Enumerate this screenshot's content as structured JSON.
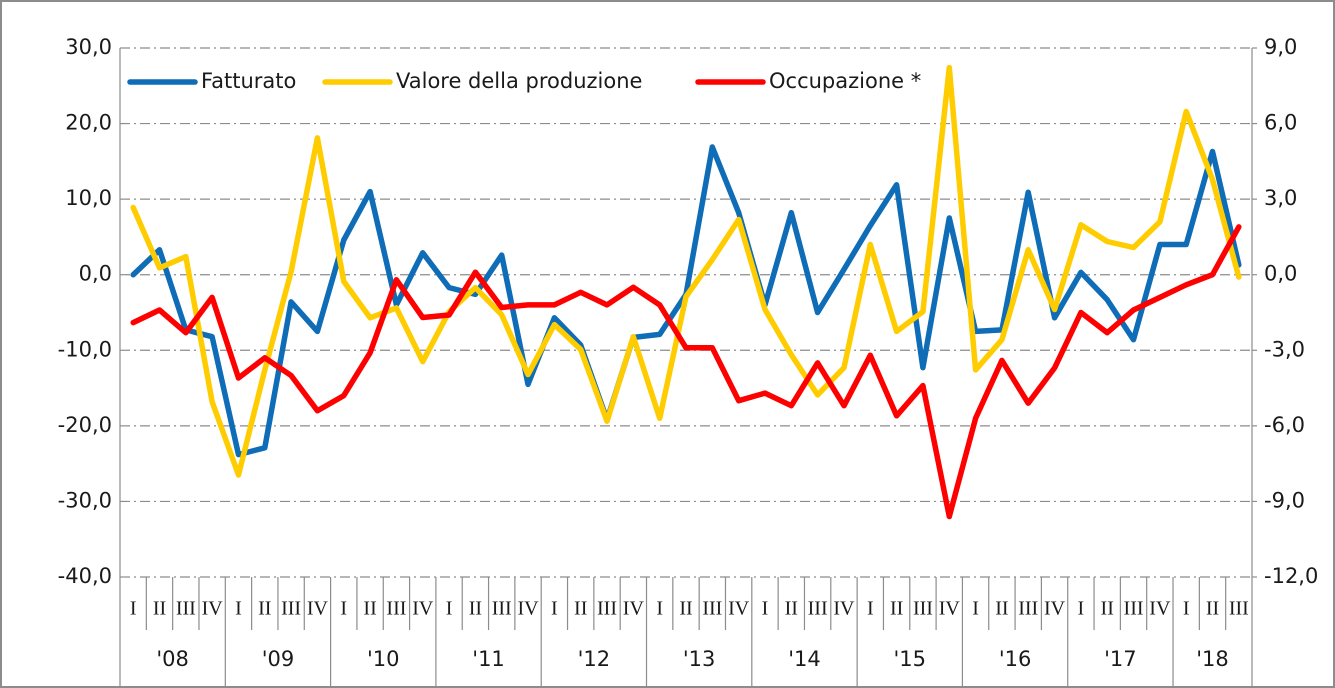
{
  "chart_data": {
    "type": "line",
    "categories": [
      "I",
      "II",
      "III",
      "IV",
      "I",
      "II",
      "III",
      "IV",
      "I",
      "II",
      "III",
      "IV",
      "I",
      "II",
      "III",
      "IV",
      "I",
      "II",
      "III",
      "IV",
      "I",
      "II",
      "III",
      "IV",
      "I",
      "II",
      "III",
      "IV",
      "I",
      "II",
      "III",
      "IV",
      "I",
      "II",
      "III",
      "IV",
      "I",
      "II",
      "III",
      "IV",
      "I",
      "II",
      "III"
    ],
    "x_groups": [
      "'08",
      "'09",
      "'10",
      "'11",
      "'12",
      "'13",
      "'14",
      "'15",
      "'16",
      "'17",
      "'18"
    ],
    "series": [
      {
        "name": "Fatturato",
        "color": "#0f6cb6",
        "values": [
          0.0,
          3.3,
          -7.3,
          -8.2,
          -23.8,
          -22.9,
          -3.6,
          -7.5,
          4.6,
          11.0,
          -4.0,
          2.9,
          -1.7,
          -2.6,
          2.6,
          -14.5,
          -5.7,
          -9.3,
          -19.2,
          -8.3,
          -7.9,
          -2.6,
          16.9,
          8.2,
          -4.0,
          8.2,
          -5.0,
          0.7,
          6.5,
          11.9,
          -12.3,
          7.5,
          -7.5,
          -7.3,
          10.9,
          -5.7,
          0.3,
          -3.3,
          -8.6,
          4.0,
          4.0,
          16.3,
          1.3
        ]
      },
      {
        "name": "Valore della produzione",
        "color": "#ffcc00",
        "values": [
          8.9,
          0.9,
          2.4,
          -16.8,
          -26.5,
          -12.6,
          0.4,
          18.1,
          -0.9,
          -5.7,
          -4.4,
          -11.5,
          -4.9,
          -1.7,
          -5.3,
          -13.2,
          -6.6,
          -9.9,
          -19.4,
          -8.2,
          -19.0,
          -2.9,
          2.0,
          7.3,
          -4.6,
          -10.6,
          -15.9,
          -12.3,
          4.0,
          -7.5,
          -4.9,
          27.4,
          -12.6,
          -8.6,
          3.3,
          -4.6,
          6.6,
          4.4,
          3.6,
          7.0,
          21.6,
          12.6,
          -0.3
        ]
      },
      {
        "name": "Occupazione *",
        "color": "#ff0000",
        "axis": "y2",
        "values": [
          -1.9,
          -1.4,
          -2.3,
          -0.9,
          -4.1,
          -3.3,
          -4.0,
          -5.4,
          -4.8,
          -3.1,
          -0.2,
          -1.7,
          -1.6,
          0.1,
          -1.3,
          -1.2,
          -1.2,
          -0.7,
          -1.2,
          -0.5,
          -1.2,
          -2.9,
          -2.9,
          -5.0,
          -4.7,
          -5.2,
          -3.5,
          -5.2,
          -3.2,
          -5.6,
          -4.4,
          -9.6,
          -5.7,
          -3.4,
          -5.1,
          -3.7,
          -1.5,
          -2.3,
          -1.4,
          -0.9,
          -0.4,
          0.0,
          1.9
        ]
      }
    ],
    "ylim": [
      -40,
      30
    ],
    "yticks": [
      {
        "value": -40,
        "label": "-40,0"
      },
      {
        "value": -30,
        "label": "-30,0"
      },
      {
        "value": -20,
        "label": "-20,0"
      },
      {
        "value": -10,
        "label": "-10,0"
      },
      {
        "value": 0,
        "label": "0,0"
      },
      {
        "value": 10,
        "label": "10,0"
      },
      {
        "value": 20,
        "label": "20,0"
      },
      {
        "value": 30,
        "label": "30,0"
      }
    ],
    "y2lim": [
      -12,
      9
    ],
    "y2ticks": [
      {
        "value": -12,
        "label": "-12,0"
      },
      {
        "value": -9,
        "label": "-9,0"
      },
      {
        "value": -6,
        "label": "-6,0"
      },
      {
        "value": -3,
        "label": "-3,0"
      },
      {
        "value": 0,
        "label": "0,0"
      },
      {
        "value": 3,
        "label": "3,0"
      },
      {
        "value": 6,
        "label": "6,0"
      },
      {
        "value": 9,
        "label": "9,0"
      }
    ],
    "grid": true,
    "legend": "top-left"
  }
}
